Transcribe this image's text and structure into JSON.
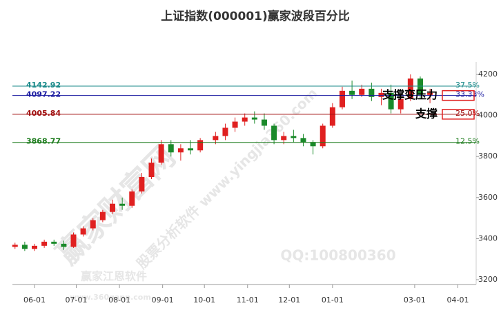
{
  "chart_data": {
    "type": "candlestick",
    "title": "上证指数(000001)赢家波段百分比",
    "x": [
      "05-18",
      "05-25",
      "06-01",
      "06-08",
      "06-15",
      "06-22",
      "06-29",
      "07-06",
      "07-13",
      "07-20",
      "07-27",
      "08-03",
      "08-10",
      "08-17",
      "08-24",
      "08-31",
      "09-07",
      "09-14",
      "09-21",
      "09-28",
      "10-09",
      "10-16",
      "10-23",
      "10-30",
      "11-06",
      "11-13",
      "11-20",
      "11-27",
      "12-04",
      "12-11",
      "12-18",
      "12-25",
      "01-01",
      "01-08",
      "01-15",
      "01-22",
      "01-29",
      "02-05",
      "02-12",
      "02-19",
      "02-26",
      "03-05",
      "03-12"
    ],
    "open": [
      3360,
      3370,
      3350,
      3365,
      3385,
      3375,
      3360,
      3420,
      3450,
      3490,
      3530,
      3570,
      3560,
      3630,
      3700,
      3770,
      3860,
      3820,
      3840,
      3830,
      3880,
      3900,
      3940,
      3970,
      3990,
      3980,
      3950,
      3880,
      3900,
      3890,
      3870,
      3850,
      3950,
      4040,
      4120,
      4100,
      4130,
      4090,
      4110,
      4030,
      4080,
      4180,
      4100
    ],
    "high": [
      3380,
      3385,
      3375,
      3395,
      3395,
      3390,
      3430,
      3460,
      3500,
      3540,
      3590,
      3600,
      3640,
      3720,
      3790,
      3880,
      3880,
      3860,
      3880,
      3890,
      3920,
      3960,
      3990,
      4010,
      4020,
      4010,
      3960,
      3920,
      3930,
      3910,
      3880,
      3960,
      4060,
      4140,
      4170,
      4150,
      4160,
      4130,
      4150,
      4100,
      4200,
      4190,
      4130
    ],
    "low": [
      3350,
      3340,
      3340,
      3355,
      3365,
      3345,
      3355,
      3410,
      3440,
      3480,
      3520,
      3540,
      3550,
      3620,
      3690,
      3760,
      3800,
      3780,
      3810,
      3820,
      3860,
      3880,
      3920,
      3950,
      3960,
      3930,
      3860,
      3860,
      3870,
      3850,
      3810,
      3840,
      3940,
      4030,
      4080,
      4090,
      4070,
      4050,
      4010,
      4010,
      4070,
      4080,
      4060
    ],
    "close": [
      3370,
      3350,
      3365,
      3385,
      3375,
      3360,
      3420,
      3450,
      3490,
      3530,
      3570,
      3560,
      3630,
      3700,
      3770,
      3860,
      3820,
      3840,
      3830,
      3880,
      3900,
      3940,
      3970,
      3990,
      3980,
      3950,
      3880,
      3900,
      3890,
      3870,
      3850,
      3950,
      4040,
      4120,
      4100,
      4130,
      4090,
      4110,
      4030,
      4080,
      4180,
      4100,
      4110
    ],
    "up_color": "#e02020",
    "down_color": "#1a8a2a",
    "xticks": [
      "06-01",
      "07-01",
      "08-01",
      "09-01",
      "10-01",
      "11-01",
      "12-01",
      "01-01",
      "03-01",
      "04-01"
    ],
    "ylim": [
      3200,
      4200
    ],
    "yticks": [
      3200,
      3400,
      3600,
      3800,
      4000,
      4200
    ],
    "levels": [
      {
        "price": 4142.92,
        "percent": {
          "value": 37.5,
          "label": "37.5%"
        },
        "color": "#1a8a8a"
      },
      {
        "price": 4097.22,
        "percent": {
          "value": 33.33,
          "label": "33.33%"
        },
        "color": "#1a1aa0"
      },
      {
        "price": 4005.84,
        "percent": {
          "value": 25.0,
          "label": "25.0%"
        },
        "color": "#a01010"
      },
      {
        "price": 3868.77,
        "percent": {
          "value": 12.5,
          "label": "12.5%"
        },
        "color": "#1a7a1a"
      }
    ],
    "annotations": [
      {
        "text": "支撑变压力",
        "level": 1
      },
      {
        "text": "支撑",
        "level": 2
      }
    ],
    "watermarks": [
      "赢家财富网",
      "股票分析软件 www.yingjia360.com",
      "QQ:100800360",
      "赢家江恩软件",
      "www.360gann.com"
    ]
  }
}
